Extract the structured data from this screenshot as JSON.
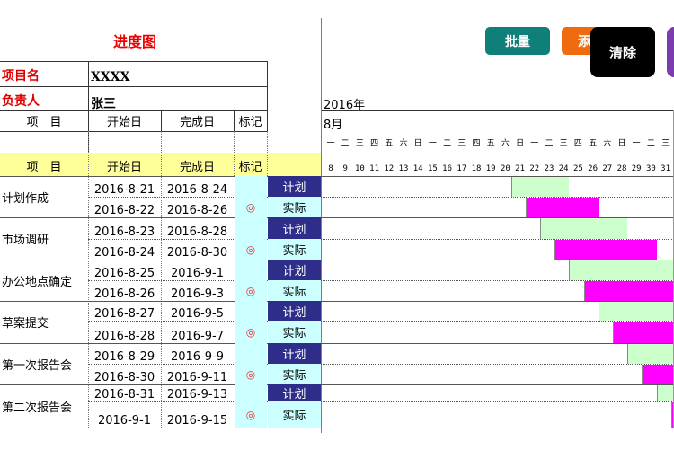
{
  "title": "进度图",
  "buttons": [
    {
      "label": "批量",
      "color": "#0f7f7a"
    },
    {
      "label": "添",
      "color": "#f06a10"
    },
    {
      "label": "清除",
      "color": "#000000"
    },
    {
      "label": "",
      "color": "#7a3db0"
    }
  ],
  "info": {
    "project_label": "项目名",
    "project_value": "XXXX",
    "owner_label": "负责人",
    "owner_value": "张三"
  },
  "headers": {
    "item": "项　目",
    "start": "开始日",
    "end": "完成日",
    "mark": "标记"
  },
  "calendar": {
    "year": "2016年",
    "month": "8月",
    "days": [
      8,
      9,
      10,
      11,
      12,
      13,
      14,
      15,
      16,
      17,
      18,
      19,
      20,
      21,
      22,
      23,
      24,
      25,
      26,
      27,
      28,
      29,
      30,
      31
    ],
    "weekdays": [
      "一",
      "二",
      "三",
      "四",
      "五",
      "六",
      "日",
      "一",
      "二",
      "三",
      "四",
      "五",
      "六",
      "日",
      "一",
      "二",
      "三",
      "四",
      "五",
      "六",
      "日",
      "一",
      "二",
      "三"
    ]
  },
  "labels": {
    "plan": "计划",
    "actual": "实际"
  },
  "colors": {
    "plan_bar": "#ccffcc",
    "actual_bar": "#ff00ff",
    "plan_label_bg": "#2e2e8a",
    "mark_bg": "#ccffff",
    "header_bg": "#ffff99"
  },
  "tasks": [
    {
      "name": "计划作成",
      "plan_start": "2016-8-21",
      "plan_end": "2016-8-24",
      "actual_start": "2016-8-22",
      "actual_end": "2016-8-26",
      "mark": "◎"
    },
    {
      "name": "市场调研",
      "plan_start": "2016-8-23",
      "plan_end": "2016-8-28",
      "actual_start": "2016-8-24",
      "actual_end": "2016-8-30",
      "mark": "◎"
    },
    {
      "name": "办公地点确定",
      "plan_start": "2016-8-25",
      "plan_end": "2016-9-1",
      "actual_start": "2016-8-26",
      "actual_end": "2016-9-3",
      "mark": "◎"
    },
    {
      "name": "草案提交",
      "plan_start": "2016-8-27",
      "plan_end": "2016-9-5",
      "actual_start": "2016-8-28",
      "actual_end": "2016-9-7",
      "mark": "◎"
    },
    {
      "name": "第一次报告会",
      "plan_start": "2016-8-29",
      "plan_end": "2016-9-9",
      "actual_start": "2016-8-30",
      "actual_end": "2016-9-11",
      "mark": "◎"
    },
    {
      "name": "第二次报告会",
      "plan_start": "2016-8-31",
      "plan_end": "2016-9-13",
      "actual_start": "2016-9-1",
      "actual_end": "2016-9-15",
      "mark": "◎"
    }
  ]
}
